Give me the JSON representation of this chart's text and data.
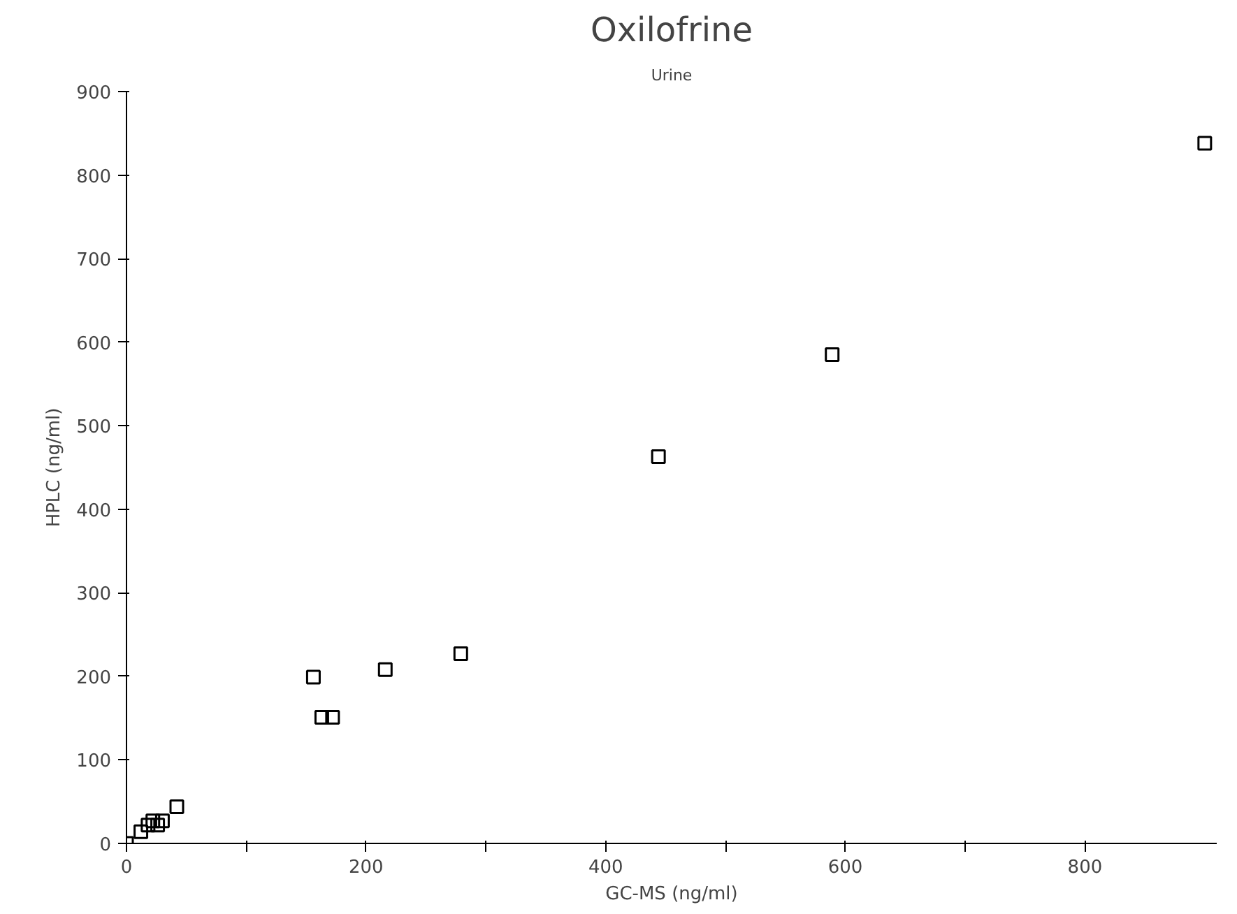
{
  "chart_data": {
    "type": "scatter",
    "title": "Oxilofrine",
    "subtitle": "Urine",
    "xlabel": "GC-MS (ng/ml)",
    "ylabel": "HPLC (ng/ml)",
    "x": [
      0,
      12,
      18,
      22,
      26,
      30,
      42,
      156,
      163,
      172,
      216,
      279,
      444,
      589,
      900
    ],
    "series": [
      {
        "color": "#000000",
        "values": [
          0,
          14,
          22,
          27,
          22,
          27,
          44,
          199,
          151,
          151,
          208,
          227,
          463,
          585,
          838
        ]
      }
    ],
    "xlim": [
      0,
      910
    ],
    "ylim": [
      0,
      900
    ],
    "xticks": [
      0,
      {
        "value": 100,
        "label": null
      },
      200,
      {
        "value": 300,
        "label": null
      },
      400,
      {
        "value": 500,
        "label": null
      },
      600,
      {
        "value": 700,
        "label": null
      },
      800
    ],
    "yticks": [
      0,
      100,
      200,
      300,
      400,
      500,
      600,
      700,
      800,
      900
    ],
    "marker": "square",
    "grid": false
  }
}
